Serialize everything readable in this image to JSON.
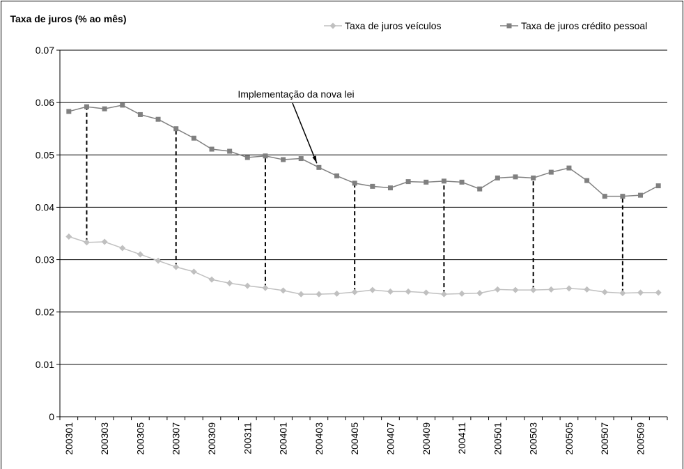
{
  "chart_data": {
    "type": "line",
    "y_label": "Taxa de juros (% ao mês)",
    "annotation": "Implementação da nova lei",
    "categories": [
      "200301",
      null,
      "200303",
      null,
      "200305",
      null,
      "200307",
      null,
      "200309",
      null,
      "200311",
      null,
      "200401",
      null,
      "200403",
      null,
      "200405",
      null,
      "200407",
      null,
      "200409",
      null,
      "200411",
      null,
      "200501",
      null,
      "200503",
      null,
      "200505",
      null,
      "200507",
      null,
      "200509",
      null
    ],
    "series": [
      {
        "name": "Taxa de juros veículos",
        "color": "#c0c0c0",
        "marker": "diamond",
        "values": [
          0.0344,
          0.0333,
          0.0334,
          0.0322,
          0.031,
          0.0298,
          0.0286,
          0.0277,
          0.0262,
          0.0255,
          0.025,
          0.0246,
          0.0241,
          0.0234,
          0.0234,
          0.0235,
          0.0238,
          0.0242,
          0.0239,
          0.0239,
          0.0237,
          0.0234,
          0.0235,
          0.0236,
          0.0243,
          0.0242,
          0.0242,
          0.0243,
          0.0245,
          0.0243,
          0.0238,
          0.0236,
          0.0237,
          0.0237
        ]
      },
      {
        "name": "Taxa de juros crédito pessoal",
        "color": "#808080",
        "marker": "square",
        "values": [
          0.0583,
          0.0592,
          0.0588,
          0.0595,
          0.0577,
          0.0568,
          0.055,
          0.0532,
          0.0511,
          0.0507,
          0.0495,
          0.0498,
          0.0491,
          0.0493,
          0.0476,
          0.046,
          0.0446,
          0.044,
          0.0437,
          0.0449,
          0.0448,
          0.045,
          0.0448,
          0.0435,
          0.0456,
          0.0458,
          0.0456,
          0.0467,
          0.0475,
          0.0451,
          0.0421,
          0.0421,
          0.0423,
          0.0441
        ]
      }
    ],
    "ylim": [
      0,
      0.07
    ],
    "yticks": [
      0,
      0.01,
      0.02,
      0.03,
      0.04,
      0.05,
      0.06,
      0.07
    ],
    "grid": true,
    "legend": "top"
  }
}
